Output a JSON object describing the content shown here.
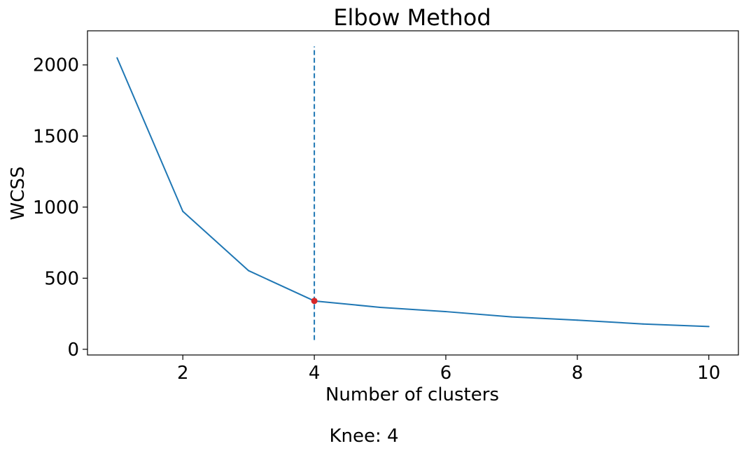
{
  "chart_data": {
    "type": "line",
    "title": "Elbow Method",
    "xlabel": "Number of clusters",
    "ylabel": "WCSS",
    "xlim": [
      0.55,
      10.45
    ],
    "ylim": [
      -40,
      2240
    ],
    "xticks": [
      2,
      4,
      6,
      8,
      10
    ],
    "yticks": [
      0,
      500,
      1000,
      1500,
      2000
    ],
    "grid": false,
    "x": [
      1,
      2,
      3,
      4,
      5,
      6,
      7,
      8,
      9,
      10
    ],
    "series": [
      {
        "values": [
          2050,
          970,
          553,
          340,
          295,
          265,
          228,
          205,
          178,
          160
        ]
      }
    ],
    "knee": {
      "x": 4,
      "y": 340,
      "vline_ymin": 65,
      "vline_ymax": 2130
    },
    "annotation": "Knee: 4",
    "colors": {
      "line": "#1f77b4",
      "knee_point": "#d62728",
      "vline": "#1f77b4"
    }
  }
}
